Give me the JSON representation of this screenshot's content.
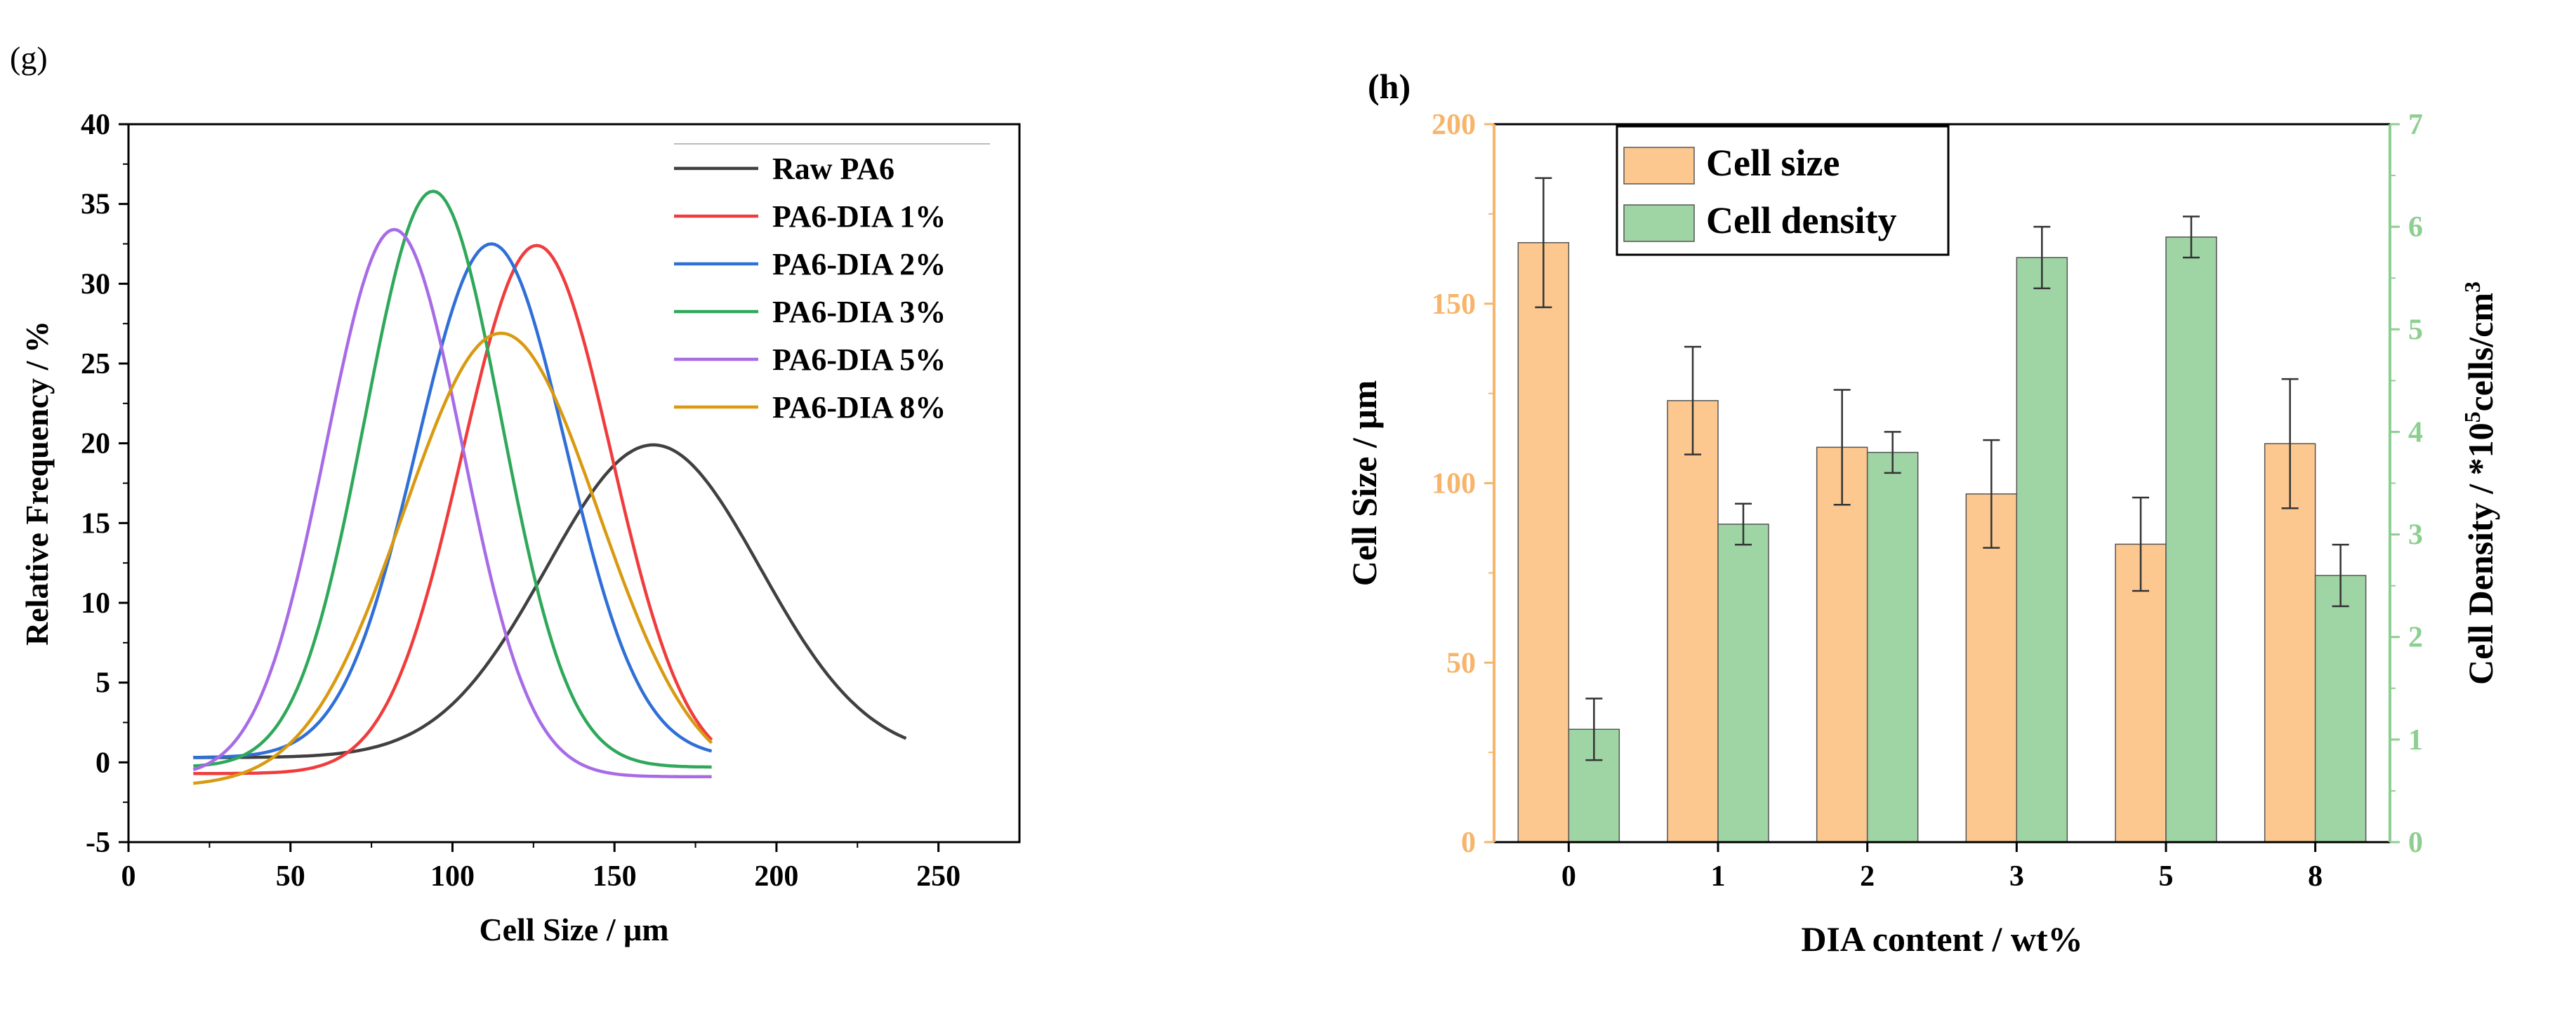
{
  "panel_labels": {
    "g": "(g)",
    "h": "(h)"
  },
  "chart_data": [
    {
      "type": "line",
      "xlabel": "Cell Size / μm",
      "ylabel": "Relative Frequency / %",
      "xlim": [
        0,
        275
      ],
      "ylim": [
        -5,
        40
      ],
      "xticks": [
        0,
        50,
        100,
        150,
        200,
        250
      ],
      "yticks": [
        -5,
        0,
        5,
        10,
        15,
        20,
        25,
        30,
        35,
        40
      ],
      "legend_position": "top-right",
      "grid": false,
      "series": [
        {
          "name": "Raw PA6",
          "color": "#404040",
          "x_range": [
            20,
            240
          ],
          "baseline": 0.3,
          "amplitude": 19.6,
          "center": 162,
          "sigma": 33
        },
        {
          "name": "PA6-DIA 1%",
          "color": "#f03c3c",
          "x_range": [
            20,
            180
          ],
          "baseline": -0.7,
          "amplitude": 33.1,
          "center": 126,
          "sigma": 23
        },
        {
          "name": "PA6-DIA 2%",
          "color": "#2f6fd6",
          "x_range": [
            20,
            180
          ],
          "baseline": 0.3,
          "amplitude": 32.2,
          "center": 112,
          "sigma": 23
        },
        {
          "name": "PA6-DIA 3%",
          "color": "#2fa85a",
          "x_range": [
            20,
            180
          ],
          "baseline": -0.3,
          "amplitude": 36.1,
          "center": 94,
          "sigma": 21
        },
        {
          "name": "PA6-DIA 5%",
          "color": "#a86be6",
          "x_range": [
            20,
            180
          ],
          "baseline": -0.9,
          "amplitude": 34.3,
          "center": 82,
          "sigma": 21
        },
        {
          "name": "PA6-DIA 8%",
          "color": "#d99a12",
          "x_range": [
            20,
            180
          ],
          "baseline": -1.5,
          "amplitude": 28.4,
          "center": 115,
          "sigma": 30
        }
      ]
    },
    {
      "type": "bar",
      "xlabel": "DIA content / wt%",
      "ylabel_left": "Cell Size / μm",
      "ylabel_right_parts": [
        "Cell Density / *10",
        "5",
        "cells/cm",
        "3"
      ],
      "categories": [
        "0",
        "1",
        "2",
        "3",
        "5",
        "8"
      ],
      "ylim_left": [
        0,
        200
      ],
      "yticks_left": [
        0,
        50,
        100,
        150,
        200
      ],
      "ylim_right": [
        0,
        7
      ],
      "yticks_right": [
        0,
        1,
        2,
        3,
        4,
        5,
        6,
        7
      ],
      "legend_position": "top-left",
      "series": [
        {
          "name": "Cell size",
          "axis": "left",
          "color": "#fcc890",
          "values": [
            167,
            123,
            110,
            97,
            83,
            111
          ],
          "errors": [
            18,
            15,
            16,
            15,
            13,
            18
          ]
        },
        {
          "name": "Cell density",
          "axis": "right",
          "color": "#9fd4a4",
          "values": [
            1.1,
            3.1,
            3.8,
            5.7,
            5.9,
            2.6
          ],
          "errors": [
            0.3,
            0.2,
            0.2,
            0.3,
            0.2,
            0.3
          ]
        }
      ],
      "axis_colors": {
        "left": "#f7b46a",
        "right": "#8ccf90"
      }
    }
  ]
}
